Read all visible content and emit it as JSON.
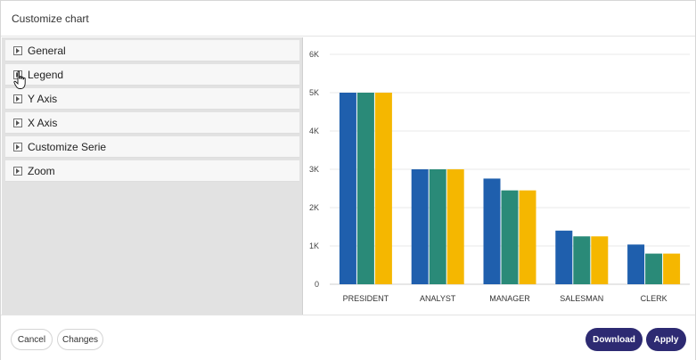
{
  "dialog": {
    "title": "Customize chart"
  },
  "accordion": [
    {
      "label": "General"
    },
    {
      "label": "Legend"
    },
    {
      "label": "Y Axis"
    },
    {
      "label": "X Axis"
    },
    {
      "label": "Customize Serie"
    },
    {
      "label": "Zoom"
    }
  ],
  "footer": {
    "cancel_label": "Cancel",
    "changes_label": "Changes",
    "download_label": "Download",
    "apply_label": "Apply"
  },
  "colors": {
    "series": [
      "#1f5fad",
      "#2a8a78",
      "#f5b700"
    ],
    "accent": "#2d2a72"
  },
  "chart_data": {
    "type": "bar",
    "categories": [
      "PRESIDENT",
      "ANALYST",
      "MANAGER",
      "SALESMAN",
      "CLERK"
    ],
    "series": [
      {
        "values": [
          5000,
          3000,
          2758,
          1400,
          1037
        ]
      },
      {
        "values": [
          5000,
          3000,
          2450,
          1250,
          800
        ]
      },
      {
        "values": [
          5000,
          3000,
          2450,
          1250,
          800
        ]
      }
    ],
    "yticks": [
      "0",
      "1K",
      "2K",
      "3K",
      "4K",
      "5K",
      "6K"
    ],
    "ylim": [
      0,
      6000
    ],
    "grid": true,
    "title": "",
    "xlabel": "",
    "ylabel": ""
  }
}
